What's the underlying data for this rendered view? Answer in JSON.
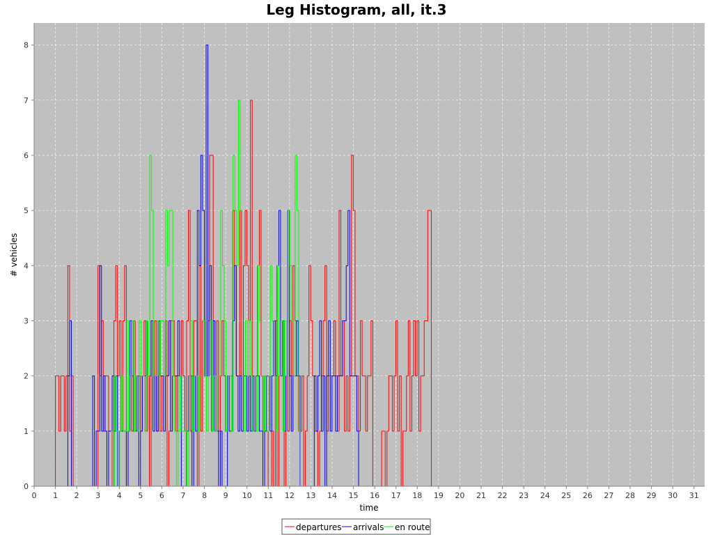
{
  "chart_data": {
    "type": "line",
    "title": "Leg Histogram, all, it.3",
    "xlabel": "time",
    "ylabel": "# vehicles",
    "xlim": [
      0,
      31.5
    ],
    "ylim": [
      0,
      8.4
    ],
    "x_ticks": [
      "0",
      "1",
      "2",
      "3",
      "4",
      "5",
      "6",
      "7",
      "8",
      "9",
      "10",
      "11",
      "12",
      "13",
      "14",
      "15",
      "16",
      "17",
      "18",
      "19",
      "20",
      "21",
      "22",
      "23",
      "24",
      "25",
      "26",
      "27",
      "28",
      "29",
      "30",
      "31"
    ],
    "y_ticks": [
      "0",
      "1",
      "2",
      "3",
      "4",
      "5",
      "6",
      "7",
      "8"
    ],
    "grid": true,
    "legend_position": "bottom",
    "step": 0.0833,
    "series": [
      {
        "name": "departures",
        "color": "#ff0000",
        "x_start": 0,
        "x_end": 30,
        "values": [
          0,
          0,
          0,
          0,
          0,
          0,
          0,
          0,
          0,
          0,
          0,
          0,
          2,
          2,
          1,
          2,
          2,
          1,
          2,
          4,
          1,
          2,
          0,
          0,
          0,
          0,
          0,
          0,
          0,
          0,
          0,
          0,
          0,
          0,
          0,
          0,
          4,
          2,
          3,
          1,
          2,
          2,
          1,
          1,
          0,
          3,
          4,
          2,
          3,
          1,
          3,
          4,
          0,
          1,
          2,
          1,
          3,
          1,
          2,
          2,
          1,
          2,
          3,
          1,
          2,
          0,
          3,
          2,
          3,
          1,
          2,
          1,
          2,
          2,
          3,
          0,
          1,
          3,
          3,
          2,
          1,
          2,
          2,
          3,
          2,
          1,
          3,
          5,
          1,
          2,
          3,
          3,
          0,
          4,
          1,
          3,
          2,
          2,
          3,
          6,
          6,
          3,
          1,
          3,
          1,
          2,
          3,
          2,
          1,
          2,
          2,
          2,
          5,
          4,
          2,
          2,
          5,
          1,
          4,
          5,
          4,
          3,
          7,
          2,
          1,
          2,
          4,
          5,
          2,
          1,
          2,
          1,
          0,
          0,
          1,
          0,
          3,
          0,
          2,
          2,
          3,
          0,
          2,
          1,
          3,
          2,
          4,
          3,
          2,
          1,
          1,
          2,
          0,
          1,
          2,
          4,
          3,
          2,
          1,
          1,
          0,
          1,
          2,
          3,
          4,
          1,
          2,
          2,
          2,
          3,
          2,
          1,
          5,
          2,
          3,
          1,
          2,
          1,
          2,
          6,
          5,
          2,
          2,
          1,
          3,
          2,
          2,
          1,
          2,
          2,
          3,
          0,
          0,
          0,
          0,
          0,
          1,
          1,
          0,
          1,
          2,
          2,
          1,
          2,
          3,
          1,
          2,
          0,
          1,
          1,
          2,
          3,
          1,
          2,
          3,
          2,
          3,
          1,
          2,
          2,
          3,
          3,
          5,
          5,
          0,
          0,
          0,
          0,
          0,
          0,
          0,
          0,
          0,
          0,
          0,
          0,
          0,
          0,
          0,
          0,
          0,
          0,
          0,
          0,
          0,
          0,
          0,
          0,
          0,
          0,
          0,
          0,
          0,
          0,
          0,
          0,
          0,
          0,
          0,
          0,
          0,
          0,
          0,
          0,
          0,
          0,
          0,
          0,
          0,
          0,
          0,
          0,
          0,
          0,
          0,
          0,
          0,
          0,
          0,
          0,
          0,
          0,
          0,
          0,
          0,
          0,
          0,
          0,
          0,
          0,
          0,
          0,
          0,
          0,
          0,
          0,
          0,
          0,
          0,
          0,
          0,
          0,
          0,
          0,
          0,
          0,
          0,
          0
        ]
      },
      {
        "name": "arrivals",
        "color": "#0000ff",
        "x_start": 1.5,
        "x_end": 23.4,
        "values": [
          0,
          2,
          3,
          0,
          0,
          0,
          0,
          0,
          0,
          0,
          0,
          0,
          0,
          0,
          0,
          2,
          0,
          1,
          1,
          4,
          1,
          2,
          1,
          0,
          1,
          1,
          2,
          1,
          2,
          0,
          1,
          1,
          1,
          1,
          0,
          1,
          3,
          2,
          1,
          1,
          2,
          0,
          1,
          2,
          2,
          3,
          2,
          2,
          3,
          1,
          2,
          1,
          3,
          2,
          2,
          1,
          2,
          2,
          3,
          1,
          2,
          2,
          2,
          3,
          2,
          0,
          0,
          0,
          1,
          2,
          2,
          0,
          2,
          1,
          5,
          4,
          6,
          5,
          2,
          8,
          2,
          4,
          1,
          3,
          1,
          1,
          0,
          1,
          0,
          0,
          0,
          2,
          1,
          1,
          3,
          4,
          2,
          1,
          2,
          1,
          2,
          2,
          1,
          2,
          1,
          2,
          1,
          2,
          2,
          1,
          1,
          0,
          1,
          2,
          2,
          1,
          2,
          3,
          2,
          4,
          5,
          2,
          3,
          1,
          2,
          5,
          2,
          1,
          2,
          2,
          3,
          2,
          0,
          0,
          0,
          0,
          0,
          0,
          0,
          0,
          2,
          1,
          2,
          3,
          1,
          2,
          0,
          2,
          3,
          1,
          2,
          2,
          1,
          2,
          2,
          2,
          3,
          3,
          4,
          5,
          2,
          2,
          2,
          2,
          1,
          0,
          0,
          0,
          0,
          0,
          0,
          0,
          0,
          0,
          0,
          0,
          0,
          0,
          0,
          0,
          0,
          0,
          0,
          0,
          0,
          0,
          0,
          0,
          0,
          0,
          0,
          0,
          0,
          0,
          0,
          0,
          0,
          0,
          0,
          0,
          0,
          0,
          0,
          0,
          0,
          0,
          0,
          0,
          0,
          0,
          0,
          0,
          0,
          0,
          0,
          0,
          0,
          0,
          0,
          0,
          0,
          0,
          0,
          0,
          0,
          0,
          0,
          0,
          0,
          0,
          0,
          0,
          0,
          0,
          0,
          0,
          0,
          0,
          0,
          0,
          0,
          0,
          0,
          0,
          0,
          0,
          0,
          0,
          0,
          0,
          0,
          0,
          0,
          0,
          0,
          0,
          0,
          0,
          0,
          0,
          0,
          0,
          0,
          0,
          0,
          0,
          0,
          0
        ]
      },
      {
        "name": "en route",
        "color": "#00ff00",
        "x_start": 3.6,
        "x_end": 23.4,
        "values": [
          1,
          0,
          2,
          1,
          0,
          1,
          2,
          1,
          1,
          3,
          1,
          2,
          3,
          1,
          2,
          1,
          3,
          2,
          2,
          1,
          3,
          2,
          6,
          5,
          2,
          2,
          3,
          2,
          3,
          3,
          2,
          5,
          4,
          5,
          5,
          2,
          1,
          0,
          1,
          2,
          1,
          1,
          1,
          0,
          2,
          3,
          1,
          2,
          2,
          1,
          2,
          2,
          3,
          2,
          1,
          2,
          3,
          1,
          2,
          1,
          2,
          2,
          5,
          4,
          3,
          1,
          2,
          2,
          1,
          6,
          5,
          4,
          7,
          5,
          2,
          1,
          3,
          2,
          3,
          2,
          1,
          2,
          1,
          4,
          3,
          2,
          1,
          2,
          1,
          2,
          4,
          3,
          2,
          1,
          4,
          2,
          3,
          1,
          3,
          2,
          5,
          4,
          3,
          2,
          6,
          5,
          1,
          0,
          0,
          0,
          0,
          0,
          0,
          0,
          0,
          0,
          0,
          0,
          0,
          0,
          0,
          0,
          0,
          0,
          0,
          0,
          0,
          0,
          0,
          0,
          0,
          0,
          0,
          0,
          0,
          0,
          0,
          0,
          0,
          0,
          0,
          0,
          0,
          0,
          0,
          0,
          0,
          0,
          0,
          0,
          0,
          0,
          0,
          0,
          0,
          0,
          0,
          0,
          0,
          0,
          0,
          0,
          0,
          0,
          0,
          0,
          0,
          0,
          0,
          0,
          0,
          0,
          0,
          0,
          0,
          0,
          0,
          0,
          0,
          0,
          0,
          0,
          0,
          0,
          0,
          0,
          0,
          0,
          0,
          0,
          0,
          0,
          0,
          0,
          0,
          0,
          0,
          0,
          0,
          0,
          0,
          0,
          0,
          0,
          0,
          0,
          0,
          0,
          0,
          0,
          0,
          0,
          0,
          0,
          0,
          0,
          0,
          0,
          0,
          0,
          0,
          0,
          0,
          0,
          0,
          0,
          0,
          0,
          0,
          0,
          0,
          0,
          0,
          0,
          0,
          0,
          0,
          0,
          0,
          0,
          0,
          0,
          0,
          0,
          0,
          0,
          0,
          0,
          0,
          0,
          0,
          0,
          0,
          0,
          0,
          0,
          0,
          0,
          0,
          0,
          0,
          0,
          0,
          0,
          0,
          0,
          0,
          0,
          0,
          0,
          0
        ]
      }
    ],
    "plot_background": "#c0c0c0"
  }
}
